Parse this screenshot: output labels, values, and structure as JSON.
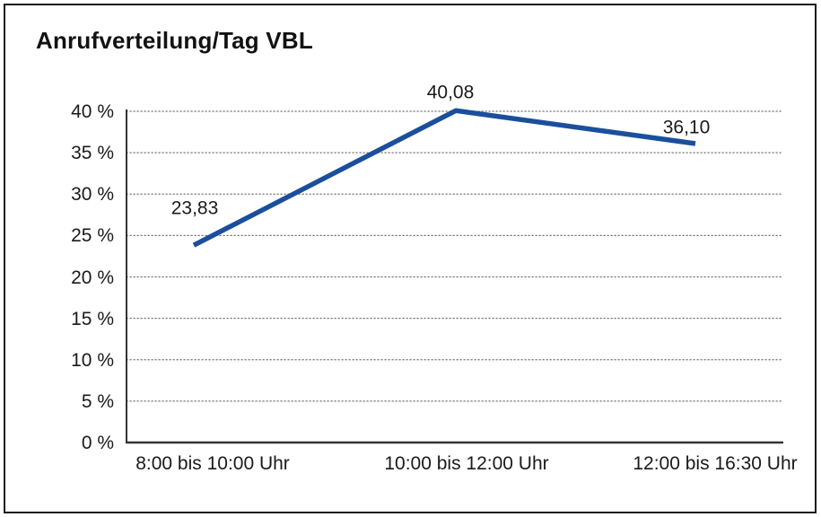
{
  "title": "Anrufverteilung/Tag VBL",
  "colors": {
    "line": "#1a4f9c",
    "text": "#1a1a1a",
    "grid": "#767676",
    "axis": "#333333",
    "border": "#1a1a1a",
    "background": "#ffffff"
  },
  "chart_data": {
    "type": "line",
    "title": "Anrufverteilung/Tag VBL",
    "categories": [
      "8:00 bis 10:00 Uhr",
      "10:00 bis 12:00 Uhr",
      "12:00 bis 16:30 Uhr"
    ],
    "values": [
      23.83,
      40.08,
      36.1
    ],
    "point_labels": [
      "23,83",
      "40,08",
      "36,10"
    ],
    "xlabel": "",
    "ylabel": "",
    "ylim": [
      0,
      40
    ],
    "ytick_step": 5,
    "ytick_labels": [
      "0 %",
      "5 %",
      "10 %",
      "15 %",
      "20 %",
      "25 %",
      "30 %",
      "35 %",
      "40 %"
    ],
    "grid": "horizontal-dotted",
    "legend": "none",
    "line_color": "#1a4f9c"
  }
}
